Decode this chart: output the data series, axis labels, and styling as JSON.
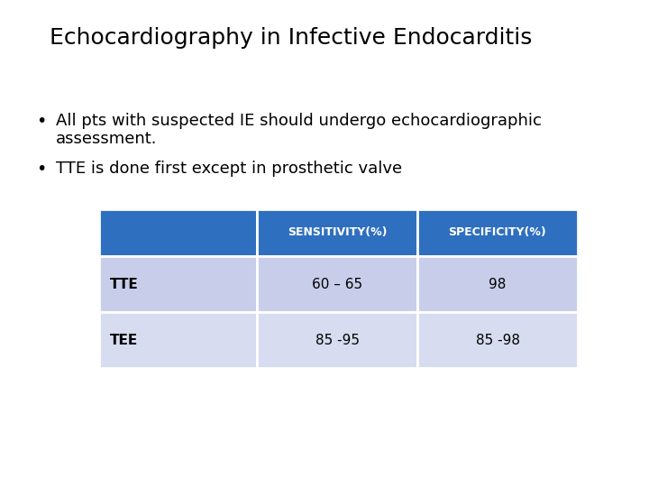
{
  "title": "Echocardiography in Infective Endocarditis",
  "bullet1_line1": "All pts with suspected IE should undergo echocardiographic",
  "bullet1_line2": "assessment.",
  "bullet2": "TTE is done first except in prosthetic valve",
  "table_header": [
    "",
    "SENSITIVITY(%)",
    "SPECIFICITY(%)"
  ],
  "table_rows": [
    [
      "TTE",
      "60 – 65",
      "98"
    ],
    [
      "TEE",
      "85 -95",
      "85 -98"
    ]
  ],
  "header_bg": "#2F6FBF",
  "header_text_color": "#FFFFFF",
  "row1_bg": "#C8CEEA",
  "row2_bg": "#D8DCF0",
  "row_text_color": "#000000",
  "title_color": "#000000",
  "bullet_color": "#000000",
  "background_color": "#FFFFFF",
  "title_fontsize": 18,
  "bullet_fontsize": 13,
  "table_header_fontsize": 9,
  "table_row_fontsize": 11,
  "fig_width": 7.2,
  "fig_height": 5.4,
  "dpi": 100
}
